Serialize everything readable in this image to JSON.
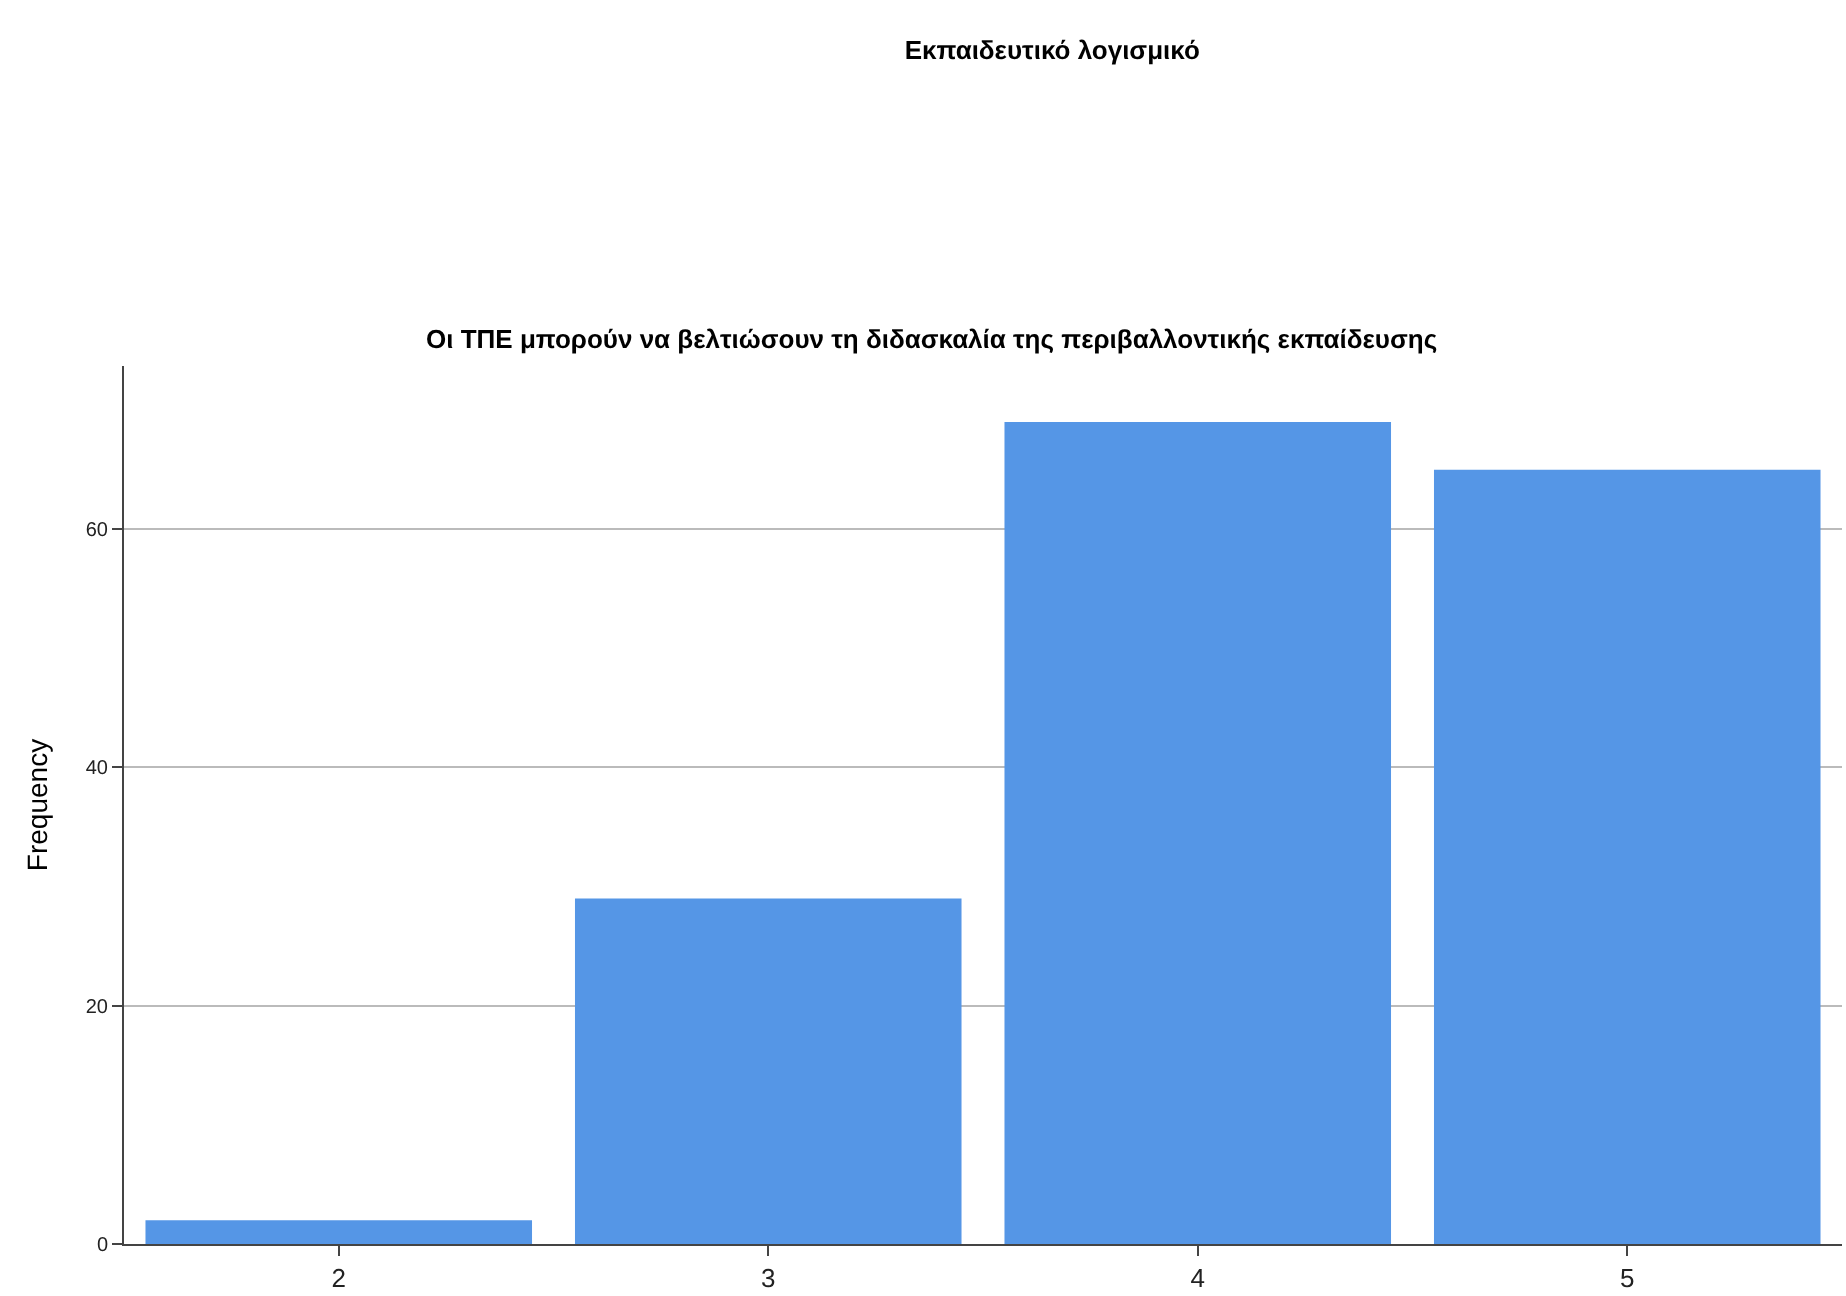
{
  "chart_data": {
    "type": "bar",
    "title": "Εκπαιδευτικό λογισμικό",
    "subtitle": "Οι ΤΠΕ μπορούν να βελτιώσουν τη διδασκαλία της περιβαλλοντικής εκπαίδευσης",
    "ylabel": "Frequency",
    "categories": [
      "2",
      "3",
      "4",
      "5"
    ],
    "values": [
      2,
      29,
      69,
      65
    ],
    "color": "#5596e6",
    "ylim": [
      0,
      73.7
    ],
    "yticks": [
      0,
      20,
      40,
      60
    ],
    "grid": "y"
  }
}
